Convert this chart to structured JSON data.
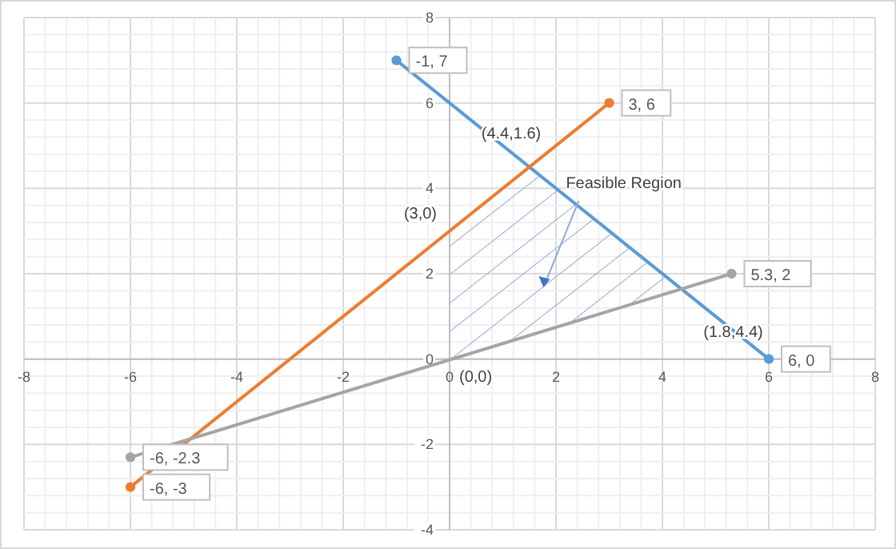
{
  "chart_data": {
    "type": "line",
    "xlim": [
      -8,
      8
    ],
    "ylim": [
      -4,
      8
    ],
    "xticks": [
      -8,
      -6,
      -4,
      -2,
      0,
      2,
      4,
      6,
      8
    ],
    "yticks": [
      -4,
      -2,
      0,
      2,
      4,
      6,
      8
    ],
    "grid": true,
    "marker": "circle",
    "line_style": "solid",
    "legend": false,
    "series": [
      {
        "color": "#5b9bd5",
        "x": [
          -1,
          6
        ],
        "values": [
          7,
          0
        ],
        "value_labels": [
          "-1, 7",
          "6, 0"
        ]
      },
      {
        "color": "#ed7d31",
        "x": [
          -6,
          3
        ],
        "values": [
          -3,
          6
        ],
        "value_labels": [
          "-6, -3",
          "3, 6"
        ]
      },
      {
        "color": "#a5a5a5",
        "x": [
          -6,
          5.3
        ],
        "values": [
          -2.3,
          2
        ],
        "value_labels": [
          "-6, -2.3",
          "5.3, 2"
        ]
      }
    ],
    "annotations": [
      {
        "text": "(4.4,1.6)",
        "x": 1.5,
        "y": 4.5
      },
      {
        "text": "(3,0)",
        "x": 0,
        "y": 3
      },
      "Feasible Region",
      {
        "text": "(1.8,4.4)",
        "x": 4.35,
        "y": 1.65
      },
      {
        "text": "(0,0)",
        "x": 0,
        "y": 0
      }
    ]
  }
}
